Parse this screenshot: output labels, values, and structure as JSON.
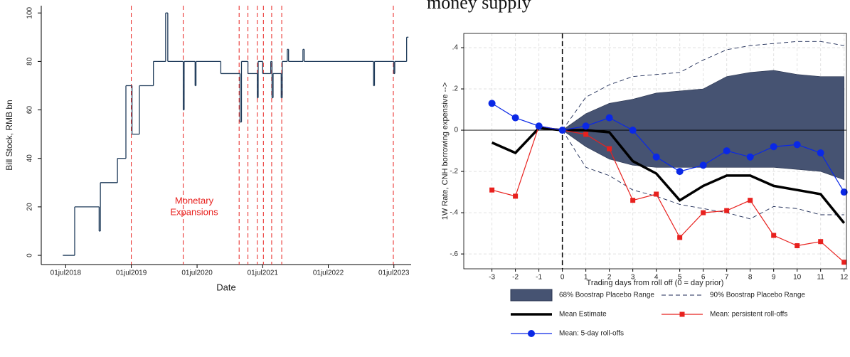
{
  "chart_data": [
    {
      "type": "step",
      "xlabel": "Date",
      "ylabel": "Bill Stock, RMB bn",
      "color": "#1f3b5a",
      "x": [
        "2018-06-15",
        "2018-08-20",
        "2019-01-03",
        "2019-01-10",
        "2019-04-15",
        "2019-06-01",
        "2019-07-05",
        "2019-08-15",
        "2019-11-01",
        "2020-01-08",
        "2020-01-20",
        "2020-04-15",
        "2020-04-20",
        "2020-06-20",
        "2020-06-25",
        "2020-11-10",
        "2021-02-25",
        "2021-03-05",
        "2021-04-10",
        "2021-06-01",
        "2021-06-06",
        "2021-07-01",
        "2021-08-15",
        "2021-08-22",
        "2021-08-28",
        "2021-10-12",
        "2021-10-18",
        "2021-11-15",
        "2021-11-22",
        "2022-02-10",
        "2022-02-17",
        "2023-03-10",
        "2023-03-15",
        "2023-07-01",
        "2023-07-06",
        "2023-09-10",
        "2023-09-20"
      ],
      "values": [
        0,
        20,
        10,
        30,
        40,
        70,
        50,
        70,
        80,
        100,
        80,
        60,
        80,
        70,
        80,
        75,
        55,
        80,
        75,
        65,
        80,
        75,
        80,
        65,
        75,
        65,
        80,
        85,
        80,
        85,
        80,
        70,
        80,
        75,
        80,
        90,
        90
      ],
      "xlim": [
        "2018-02-15",
        "2023-10-05"
      ],
      "xticks": [
        {
          "value": "2018-07-01",
          "label": "01jul2018"
        },
        {
          "value": "2019-07-01",
          "label": "01jul2019"
        },
        {
          "value": "2020-07-01",
          "label": "01jul2020"
        },
        {
          "value": "2021-07-01",
          "label": "01jul2021"
        },
        {
          "value": "2022-07-01",
          "label": "01jul2022"
        },
        {
          "value": "2023-07-01",
          "label": "01jul2023"
        }
      ],
      "ylim": [
        -3.8,
        103
      ],
      "yticks": [
        0,
        20,
        40,
        60,
        80,
        100
      ],
      "vlines": [
        "2019-07-01",
        "2020-04-15",
        "2021-02-20",
        "2021-04-10",
        "2021-06-01",
        "2021-07-05",
        "2021-08-20",
        "2021-10-15",
        "2023-06-28"
      ],
      "vline_color": "#e8211e",
      "annotation": [
        "Monetary",
        "Expansions"
      ],
      "annotation_color": "#e8211e"
    },
    {
      "type": "line",
      "title": "money supply",
      "xlabel": "Trading days from roll off (0 = day prior)",
      "ylabel": "1W Rate, CNH borrowing expensive -->",
      "x": [
        -3,
        -2,
        -1,
        0,
        1,
        2,
        3,
        4,
        5,
        6,
        7,
        8,
        9,
        10,
        11,
        12
      ],
      "series": [
        {
          "name": "68% Boostrap Placebo Range",
          "style": "band",
          "color": "#465372",
          "upper": [
            null,
            null,
            null,
            0,
            0.08,
            0.13,
            0.15,
            0.18,
            0.19,
            0.2,
            0.26,
            0.28,
            0.29,
            0.27,
            0.26,
            0.26
          ],
          "lower": [
            null,
            null,
            null,
            0,
            -0.08,
            -0.14,
            -0.17,
            -0.18,
            -0.18,
            -0.18,
            -0.18,
            -0.18,
            -0.18,
            -0.19,
            -0.2,
            -0.24
          ]
        },
        {
          "name": "90% Boostrap Placebo Range",
          "style": "dashed",
          "color": "#1c2a55",
          "upper": [
            null,
            null,
            null,
            0,
            0.16,
            0.22,
            0.26,
            0.27,
            0.28,
            0.34,
            0.39,
            0.41,
            0.42,
            0.43,
            0.43,
            0.41
          ],
          "lower": [
            null,
            null,
            null,
            0,
            -0.18,
            -0.22,
            -0.29,
            -0.32,
            -0.36,
            -0.38,
            -0.4,
            -0.43,
            -0.37,
            -0.38,
            -0.41,
            -0.41
          ]
        },
        {
          "name": "Mean Estimate",
          "style": "line",
          "color": "#000000",
          "values": [
            -0.06,
            -0.11,
            0.01,
            0,
            0,
            -0.01,
            -0.15,
            -0.21,
            -0.34,
            -0.27,
            -0.22,
            -0.22,
            -0.27,
            -0.29,
            -0.31,
            -0.45
          ]
        },
        {
          "name": "Mean: persistent roll-offs",
          "style": "square",
          "color": "#e8211e",
          "values": [
            -0.29,
            -0.32,
            0.02,
            0,
            -0.02,
            -0.09,
            -0.34,
            -0.31,
            -0.52,
            -0.4,
            -0.39,
            -0.34,
            -0.51,
            -0.56,
            -0.54,
            -0.64
          ]
        },
        {
          "name": "Mean: 5-day roll-offs",
          "style": "circle",
          "color": "#0a28e6",
          "values": [
            0.13,
            0.06,
            0.02,
            0,
            0.02,
            0.06,
            0,
            -0.13,
            -0.2,
            -0.17,
            -0.1,
            -0.13,
            -0.08,
            -0.07,
            -0.11,
            -0.3
          ]
        }
      ],
      "xlim": [
        -4.2,
        12.1
      ],
      "xticks": [
        -3,
        -2,
        -1,
        0,
        1,
        2,
        3,
        4,
        5,
        6,
        7,
        8,
        9,
        10,
        11,
        12
      ],
      "ylim": [
        -0.672,
        0.469
      ],
      "yticks": [
        {
          "value": -0.6,
          "label": "-.6"
        },
        {
          "value": -0.4,
          "label": "-.4"
        },
        {
          "value": -0.2,
          "label": "-.2"
        },
        0,
        {
          "value": 0.2,
          "label": ".2"
        },
        {
          "value": 0.4,
          "label": ".4"
        }
      ],
      "grid": true,
      "hline": 0,
      "vline": 0
    }
  ]
}
